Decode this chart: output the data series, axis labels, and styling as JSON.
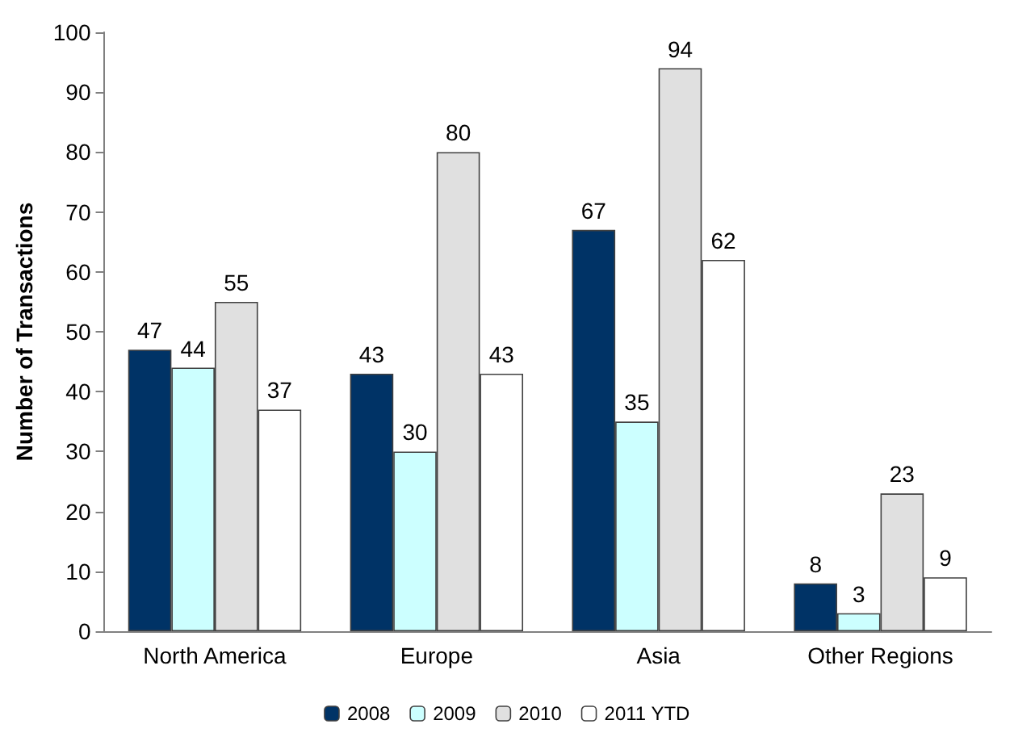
{
  "chart_data": {
    "type": "bar",
    "ylabel": "Number of Transactions",
    "categories": [
      "North America",
      "Europe",
      "Asia",
      "Other Regions"
    ],
    "series": [
      {
        "name": "2008",
        "color": "#003366",
        "values": [
          47,
          43,
          67,
          8
        ]
      },
      {
        "name": "2009",
        "color": "#ccffff",
        "values": [
          44,
          30,
          35,
          3
        ]
      },
      {
        "name": "2010",
        "color": "#e0e0e0",
        "values": [
          55,
          80,
          94,
          23
        ]
      },
      {
        "name": "2011 YTD",
        "color": "#ffffff",
        "values": [
          37,
          43,
          62,
          9
        ]
      }
    ],
    "ylim": [
      0,
      100
    ],
    "yticks": [
      0,
      10,
      20,
      30,
      40,
      50,
      60,
      70,
      80,
      90,
      100
    ],
    "data_labels": true,
    "grid": false,
    "legend": "bottom"
  }
}
